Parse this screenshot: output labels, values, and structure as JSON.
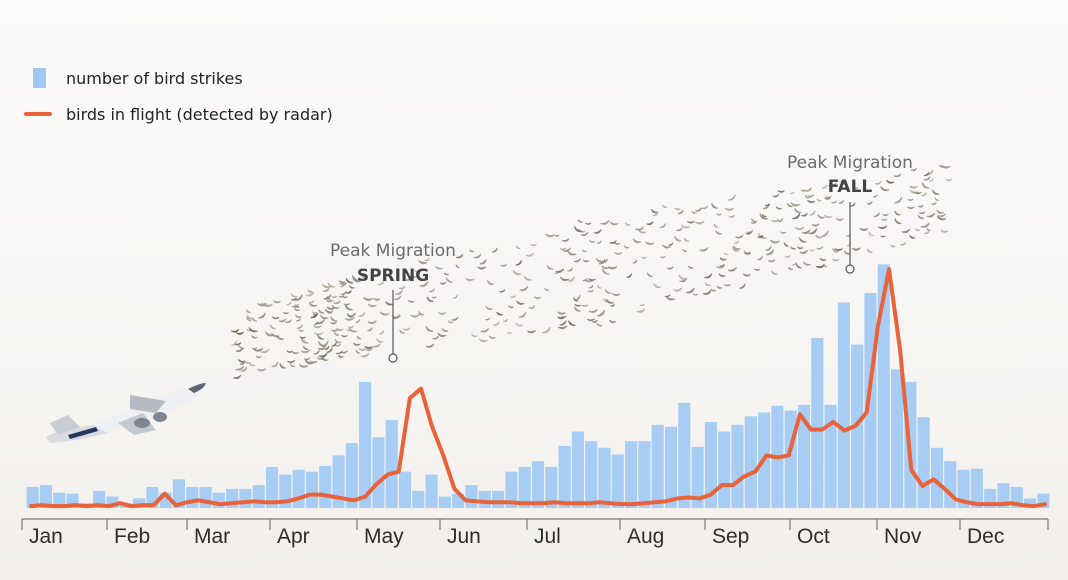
{
  "chart_data": {
    "type": "bar",
    "legend": [
      {
        "type": "bar",
        "label": "number of bird strikes",
        "color": "#9ec9f5"
      },
      {
        "type": "line",
        "label": "birds in flight (detected by radar)",
        "color": "#e8623a"
      }
    ],
    "legend_position": "top-left",
    "grid": false,
    "months": [
      "Jan",
      "Feb",
      "Mar",
      "Apr",
      "May",
      "Jun",
      "Jul",
      "Aug",
      "Sep",
      "Oct",
      "Nov",
      "Dec"
    ],
    "weeks": 52,
    "ylim": [
      0,
      270
    ],
    "series": [
      {
        "name": "number of bird strikes",
        "type": "bar",
        "values": [
          22,
          24,
          16,
          15,
          5,
          18,
          12,
          5,
          10,
          22,
          16,
          30,
          22,
          22,
          16,
          20,
          20,
          24,
          43,
          35,
          40,
          38,
          44,
          55,
          68,
          132,
          74,
          92,
          38,
          18,
          35,
          12,
          15,
          24,
          18,
          18,
          38,
          43,
          49,
          43,
          65,
          80,
          70,
          63,
          56,
          70,
          70,
          87,
          85,
          110,
          64,
          90,
          80,
          87,
          96,
          100,
          107,
          102,
          108,
          178,
          108,
          215,
          171,
          225,
          255,
          145,
          132,
          95,
          63,
          49,
          40,
          41,
          20,
          26,
          22,
          10,
          15
        ]
      },
      {
        "name": "birds in flight (detected by radar)",
        "type": "line",
        "values": [
          2,
          3,
          2,
          2,
          3,
          2,
          3,
          2,
          5,
          2,
          3,
          3,
          15,
          3,
          6,
          8,
          6,
          4,
          5,
          6,
          7,
          6,
          6,
          7,
          10,
          14,
          14,
          12,
          10,
          8,
          12,
          25,
          35,
          38,
          115,
          125,
          85,
          55,
          20,
          8,
          7,
          6,
          6,
          6,
          5,
          5,
          5,
          6,
          5,
          5,
          5,
          6,
          5,
          4,
          4,
          5,
          6,
          7,
          10,
          11,
          10,
          14,
          24,
          24,
          33,
          38,
          55,
          53,
          55,
          98,
          82,
          82,
          90,
          81,
          86,
          100,
          190,
          250,
          165,
          40,
          23,
          30,
          20,
          9,
          6,
          4,
          4,
          4,
          5,
          3,
          2,
          4
        ]
      }
    ],
    "annotations": [
      {
        "title": "Peak Migration",
        "season": "SPRING",
        "month": "May"
      },
      {
        "title": "Peak Migration",
        "season": "FALL",
        "month": "Oct"
      }
    ]
  }
}
